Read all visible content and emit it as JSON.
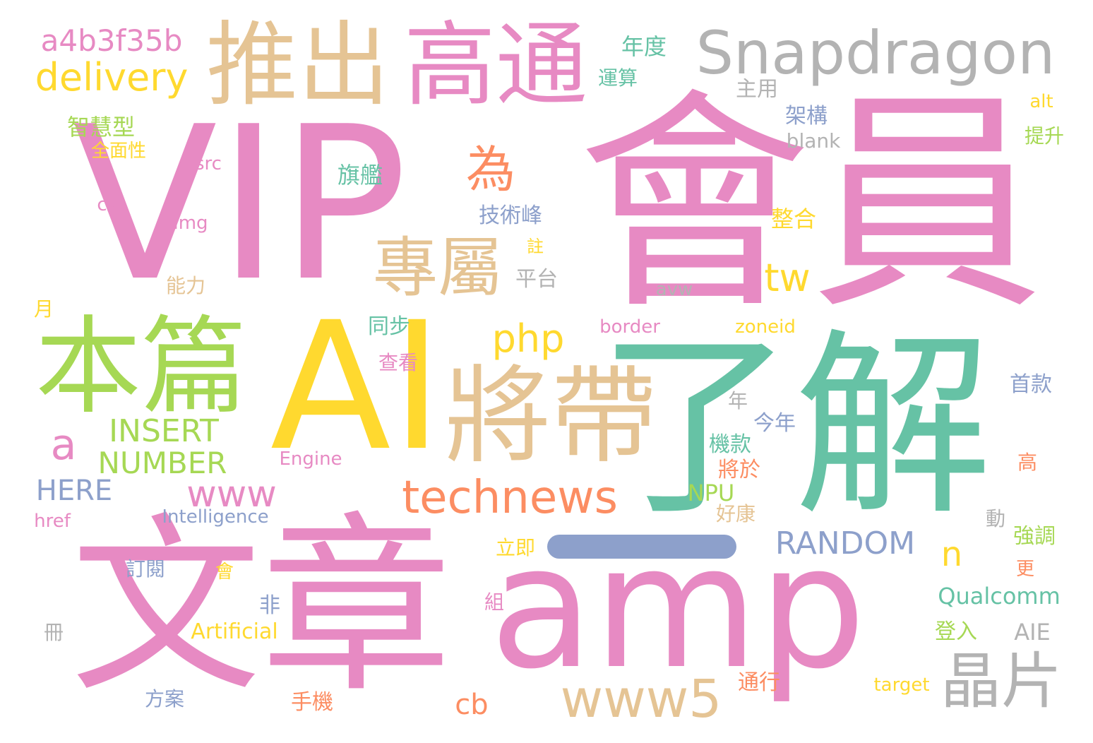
{
  "palette": {
    "pink": "#e78ac3",
    "green": "#66c2a5",
    "yellow": "#ffd92f",
    "tan": "#e5c494",
    "gray": "#b3b3b3",
    "lime": "#a6d854",
    "orange": "#fc8d62",
    "blue": "#8da0cb"
  },
  "words": {
    "vip": "VIP",
    "hui_yuan": "會員",
    "ai": "AI",
    "liao_jie": "了解",
    "wen_zhang": "文章",
    "amp": "amp",
    "ben_pian": "本篇",
    "jiang_dai": "將帶",
    "tui_chu": "推出",
    "gao_tong": "高通",
    "snapdragon": "Snapdragon",
    "zhuan_shu": "專屬",
    "jing_pian": "晶片",
    "www5": "www5",
    "technews": "technews",
    "delivery": "delivery",
    "a4b3f35b": "a4b3f35b",
    "wei": "為",
    "tw": "tw",
    "php": "php",
    "www": "www",
    "a": "a",
    "insert": "INSERT",
    "number": "NUMBER",
    "here": "HERE",
    "random": "RANDOM",
    "n": "n",
    "cb": "cb",
    "qualcomm": "Qualcomm",
    "artificial": "Artificial",
    "intelligence": "Intelligence",
    "engine": "Engine",
    "npu": "NPU",
    "aie": "AIE",
    "href": "href",
    "border": "border",
    "zoneid": "zoneid",
    "target": "target",
    "avw": "avw",
    "blank": "blank",
    "alt": "alt",
    "src": "src",
    "ck": "ck",
    "img": "img",
    "nian_du": "年度",
    "yun_suan": "運算",
    "zhu_yong": "主用",
    "jia_gou": "架構",
    "zhi_hui_xing": "智慧型",
    "quan_mian_xing": "全面性",
    "qi_jian": "旗艦",
    "ji_shu_feng": "技術峰",
    "zhu": "註",
    "ping_tai": "平台",
    "zheng_he": "整合",
    "neng_li": "能力",
    "yue": "月",
    "tong_bu": "同步",
    "cha_kan": "查看",
    "ti_sheng": "提升",
    "shou_kuan": "首款",
    "nian": "年",
    "jin_nian": "今年",
    "ji_kuan": "機款",
    "jiang_yu": "將於",
    "hao_kang": "好康",
    "dong": "動",
    "gao": "高",
    "qiang_diao": "強調",
    "li_ji": "立即",
    "geng": "更",
    "ding_yue": "訂閱",
    "hui": "會",
    "fei": "非",
    "zu": "組",
    "ce": "冊",
    "deng_ru": "登入",
    "tong_xing": "通行",
    "shou_ji": "手機",
    "fang_an": "方案"
  }
}
